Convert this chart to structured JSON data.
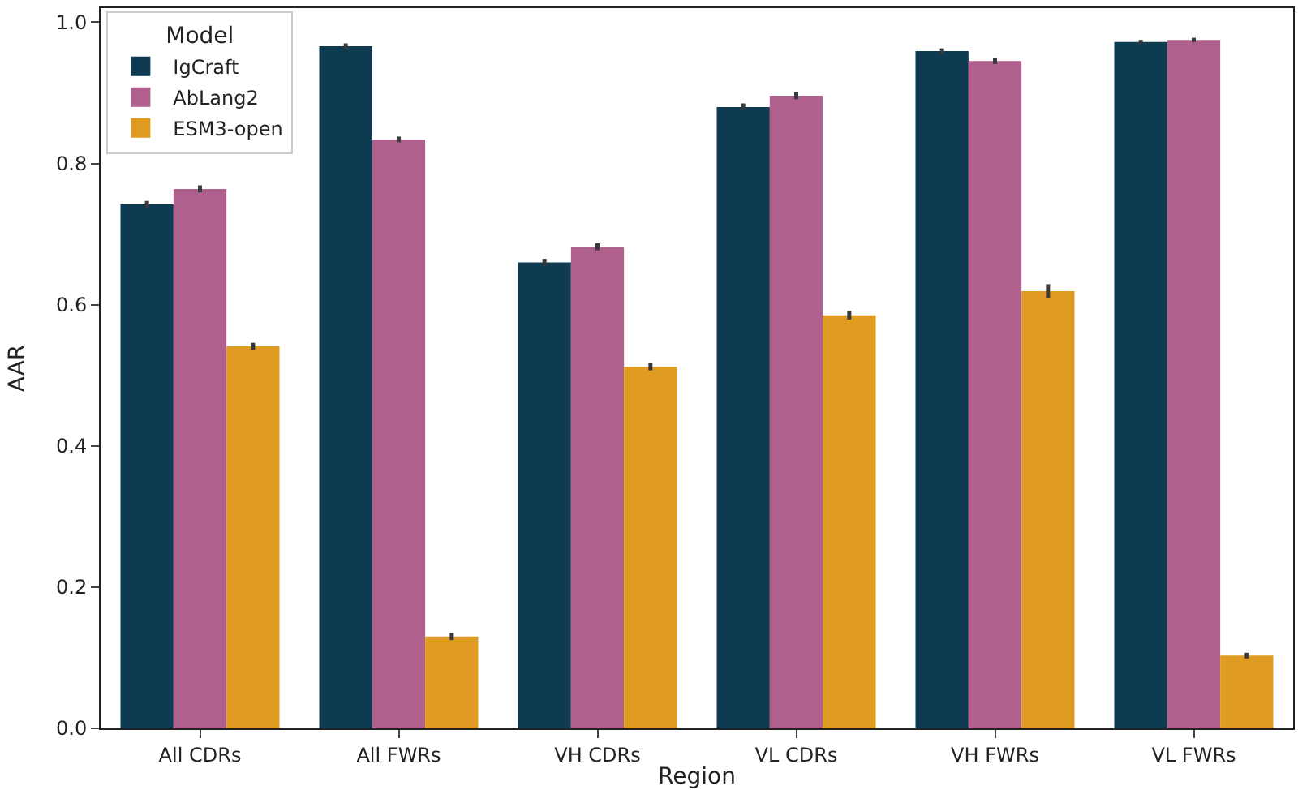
{
  "chart_data": {
    "type": "bar",
    "xlabel": "Region",
    "ylabel": "AAR",
    "legend_title": "Model",
    "legend": "top left",
    "categories": [
      "All CDRs",
      "All FWRs",
      "VH CDRs",
      "VL CDRs",
      "VH FWRs",
      "VL FWRs"
    ],
    "series": [
      {
        "name": "IgCraft",
        "color": "#0e3a52",
        "values": [
          0.742,
          0.966,
          0.66,
          0.88,
          0.959,
          0.972
        ],
        "errors": [
          0.005,
          0.004,
          0.005,
          0.005,
          0.004,
          0.003
        ]
      },
      {
        "name": "AbLang2",
        "color": "#b0608c",
        "values": [
          0.764,
          0.834,
          0.682,
          0.896,
          0.945,
          0.975
        ],
        "errors": [
          0.005,
          0.004,
          0.005,
          0.005,
          0.004,
          0.003
        ]
      },
      {
        "name": "ESM3-open",
        "color": "#e09c22",
        "values": [
          0.541,
          0.13,
          0.512,
          0.585,
          0.619,
          0.103
        ],
        "errors": [
          0.005,
          0.005,
          0.005,
          0.006,
          0.01,
          0.004
        ]
      }
    ],
    "ylim": [
      0,
      1.02
    ],
    "yticks": [
      {
        "value": 0,
        "label": "0.0"
      },
      0.2,
      0.4,
      0.6,
      0.8,
      {
        "value": 1,
        "label": "1.0"
      }
    ]
  }
}
